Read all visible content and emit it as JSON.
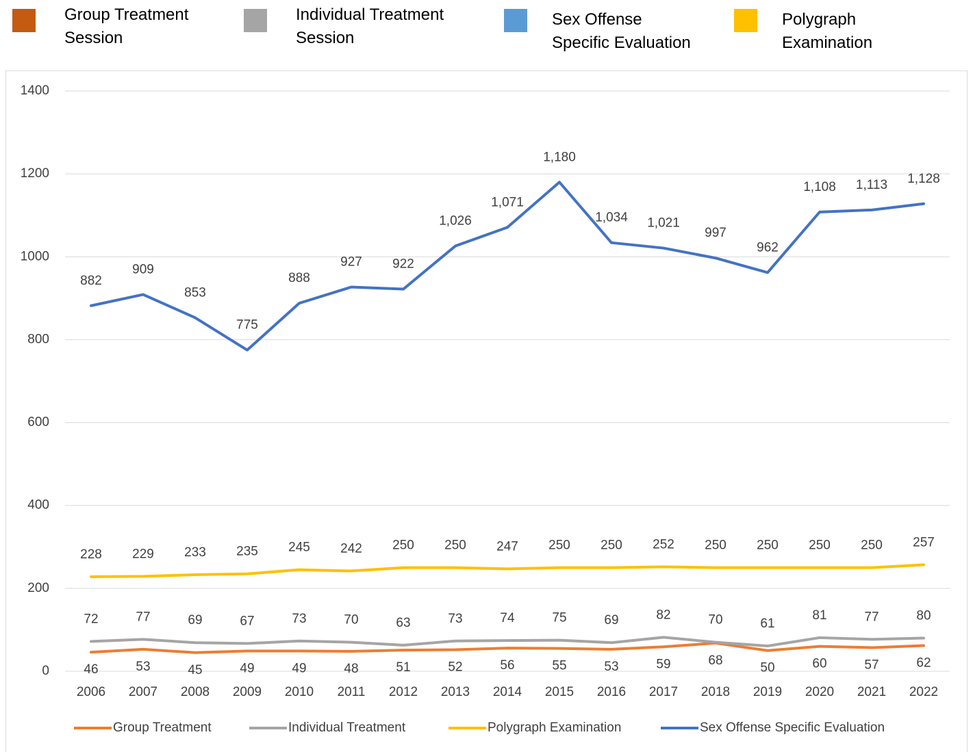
{
  "top_legend": [
    {
      "label": "Group Treatment\nSession",
      "color": "#C55A11"
    },
    {
      "label": "Individual Treatment\nSession",
      "color": "#A5A5A5"
    },
    {
      "label": "Sex Offense\nSpecific Evaluation",
      "color": "#5B9BD5"
    },
    {
      "label": "Polygraph\nExamination",
      "color": "#FFC000"
    }
  ],
  "chart_data": {
    "type": "line",
    "categories": [
      "2006",
      "2007",
      "2008",
      "2009",
      "2010",
      "2011",
      "2012",
      "2013",
      "2014",
      "2015",
      "2016",
      "2017",
      "2018",
      "2019",
      "2020",
      "2021",
      "2022"
    ],
    "series": [
      {
        "name": "Group Treatment",
        "color": "#ED7D31",
        "values": [
          46,
          53,
          45,
          49,
          49,
          48,
          51,
          52,
          56,
          55,
          53,
          59,
          68,
          50,
          60,
          57,
          62
        ]
      },
      {
        "name": "Individual Treatment",
        "color": "#A5A5A5",
        "values": [
          72,
          77,
          69,
          67,
          73,
          70,
          63,
          73,
          74,
          75,
          69,
          82,
          70,
          61,
          81,
          77,
          80
        ]
      },
      {
        "name": "Polygraph Examination",
        "color": "#FFC000",
        "values": [
          228,
          229,
          233,
          235,
          245,
          242,
          250,
          250,
          247,
          250,
          250,
          252,
          250,
          250,
          250,
          250,
          257
        ]
      },
      {
        "name": "Sex Offense Specific Evaluation",
        "color": "#4472C4",
        "values": [
          882,
          909,
          853,
          775,
          888,
          927,
          922,
          1026,
          1071,
          1180,
          1034,
          1021,
          997,
          962,
          1108,
          1113,
          1128
        ],
        "value_labels": [
          "882",
          "909",
          "853",
          "775",
          "888",
          "927",
          "922",
          "1,026",
          "1,071",
          "1,180",
          "1,034",
          "1,021",
          "997",
          "962",
          "1,108",
          "1,113",
          "1,128"
        ]
      }
    ],
    "ylim": [
      0,
      1400
    ],
    "yticks": [
      0,
      200,
      400,
      600,
      800,
      1000,
      1200,
      1400
    ],
    "grid": true,
    "legend": "bottom"
  }
}
